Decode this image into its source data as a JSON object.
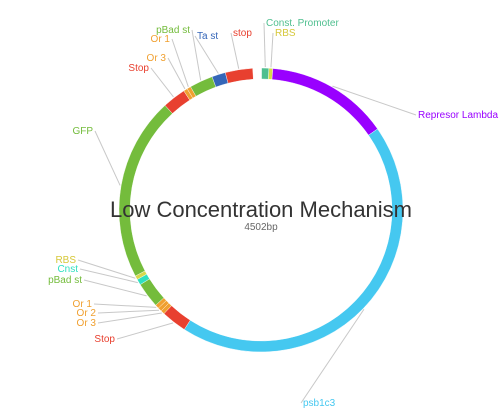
{
  "plasmid": {
    "title": "Low Concentration Mechanism",
    "length_label": "4502bp",
    "total_bp": 4502
  },
  "features": [
    {
      "name": "Const. Promoter",
      "start": 3,
      "end": 40,
      "color": "#4fbf8f"
    },
    {
      "name": "RBS",
      "start": 40,
      "end": 60,
      "color": "#d6d94a"
    },
    {
      "name": "Represor Lambda",
      "start": 60,
      "end": 690,
      "color": "#9900ff"
    },
    {
      "name": "psb1c3",
      "start": 690,
      "end": 2660,
      "color": "#45c8f0"
    },
    {
      "name": "Stop",
      "start": 2660,
      "end": 2790,
      "color": "#e8402f"
    },
    {
      "name": "Or 3",
      "start": 2790,
      "end": 2810,
      "color": "#f0a030"
    },
    {
      "name": "Or 2",
      "start": 2810,
      "end": 2830,
      "color": "#f0a030"
    },
    {
      "name": "Or 1",
      "start": 2830,
      "end": 2850,
      "color": "#f0a030"
    },
    {
      "name": "pBad st",
      "start": 2850,
      "end": 2980,
      "color": "#74bc3c"
    },
    {
      "name": "Cnst",
      "start": 2980,
      "end": 3010,
      "color": "#2fe0c0"
    },
    {
      "name": "RBS",
      "start": 3010,
      "end": 3030,
      "color": "#d6d94a"
    },
    {
      "name": "GFP",
      "start": 3030,
      "end": 3970,
      "color": "#74bc3c"
    },
    {
      "name": "Stop",
      "start": 3970,
      "end": 4090,
      "color": "#e8402f"
    },
    {
      "name": "Or 3",
      "start": 4090,
      "end": 4110,
      "color": "#f0a030"
    },
    {
      "name": "Or 1",
      "start": 4110,
      "end": 4130,
      "color": "#f0a030"
    },
    {
      "name": "pBad st",
      "start": 4130,
      "end": 4250,
      "color": "#74bc3c"
    },
    {
      "name": "Ta st",
      "start": 4250,
      "end": 4320,
      "color": "#3566b8"
    },
    {
      "name": "stop",
      "start": 4320,
      "end": 4460,
      "color": "#e8402f"
    }
  ],
  "labels": [
    {
      "text": "Const. Promoter",
      "color": "#4fbf8f",
      "feature": 0
    },
    {
      "text": "RBS",
      "color": "#d6c83a",
      "feature": 1
    },
    {
      "text": "Represor Lambda",
      "color": "#9900ff",
      "feature": 2
    },
    {
      "text": "psb1c3",
      "color": "#45c8f0",
      "feature": 3
    },
    {
      "text": "Stop",
      "color": "#e8402f",
      "feature": 4
    },
    {
      "text": "Or 3",
      "color": "#f0a030",
      "feature": 5
    },
    {
      "text": "Or 2",
      "color": "#f0a030",
      "feature": 6
    },
    {
      "text": "Or 1",
      "color": "#f0a030",
      "feature": 7
    },
    {
      "text": "pBad st",
      "color": "#74bc3c",
      "feature": 8
    },
    {
      "text": "Cnst",
      "color": "#2fe0c0",
      "feature": 9
    },
    {
      "text": "RBS",
      "color": "#d6c83a",
      "feature": 10
    },
    {
      "text": "GFP",
      "color": "#74bc3c",
      "feature": 11
    },
    {
      "text": "Stop",
      "color": "#e8402f",
      "feature": 12
    },
    {
      "text": "Or 3",
      "color": "#f0a030",
      "feature": 13
    },
    {
      "text": "Or 1",
      "color": "#f0a030",
      "feature": 14
    },
    {
      "text": "pBad st",
      "color": "#74bc3c",
      "feature": 15
    },
    {
      "text": "Ta st",
      "color": "#3566b8",
      "feature": 16
    },
    {
      "text": "stop",
      "color": "#e8402f",
      "feature": 17
    }
  ]
}
